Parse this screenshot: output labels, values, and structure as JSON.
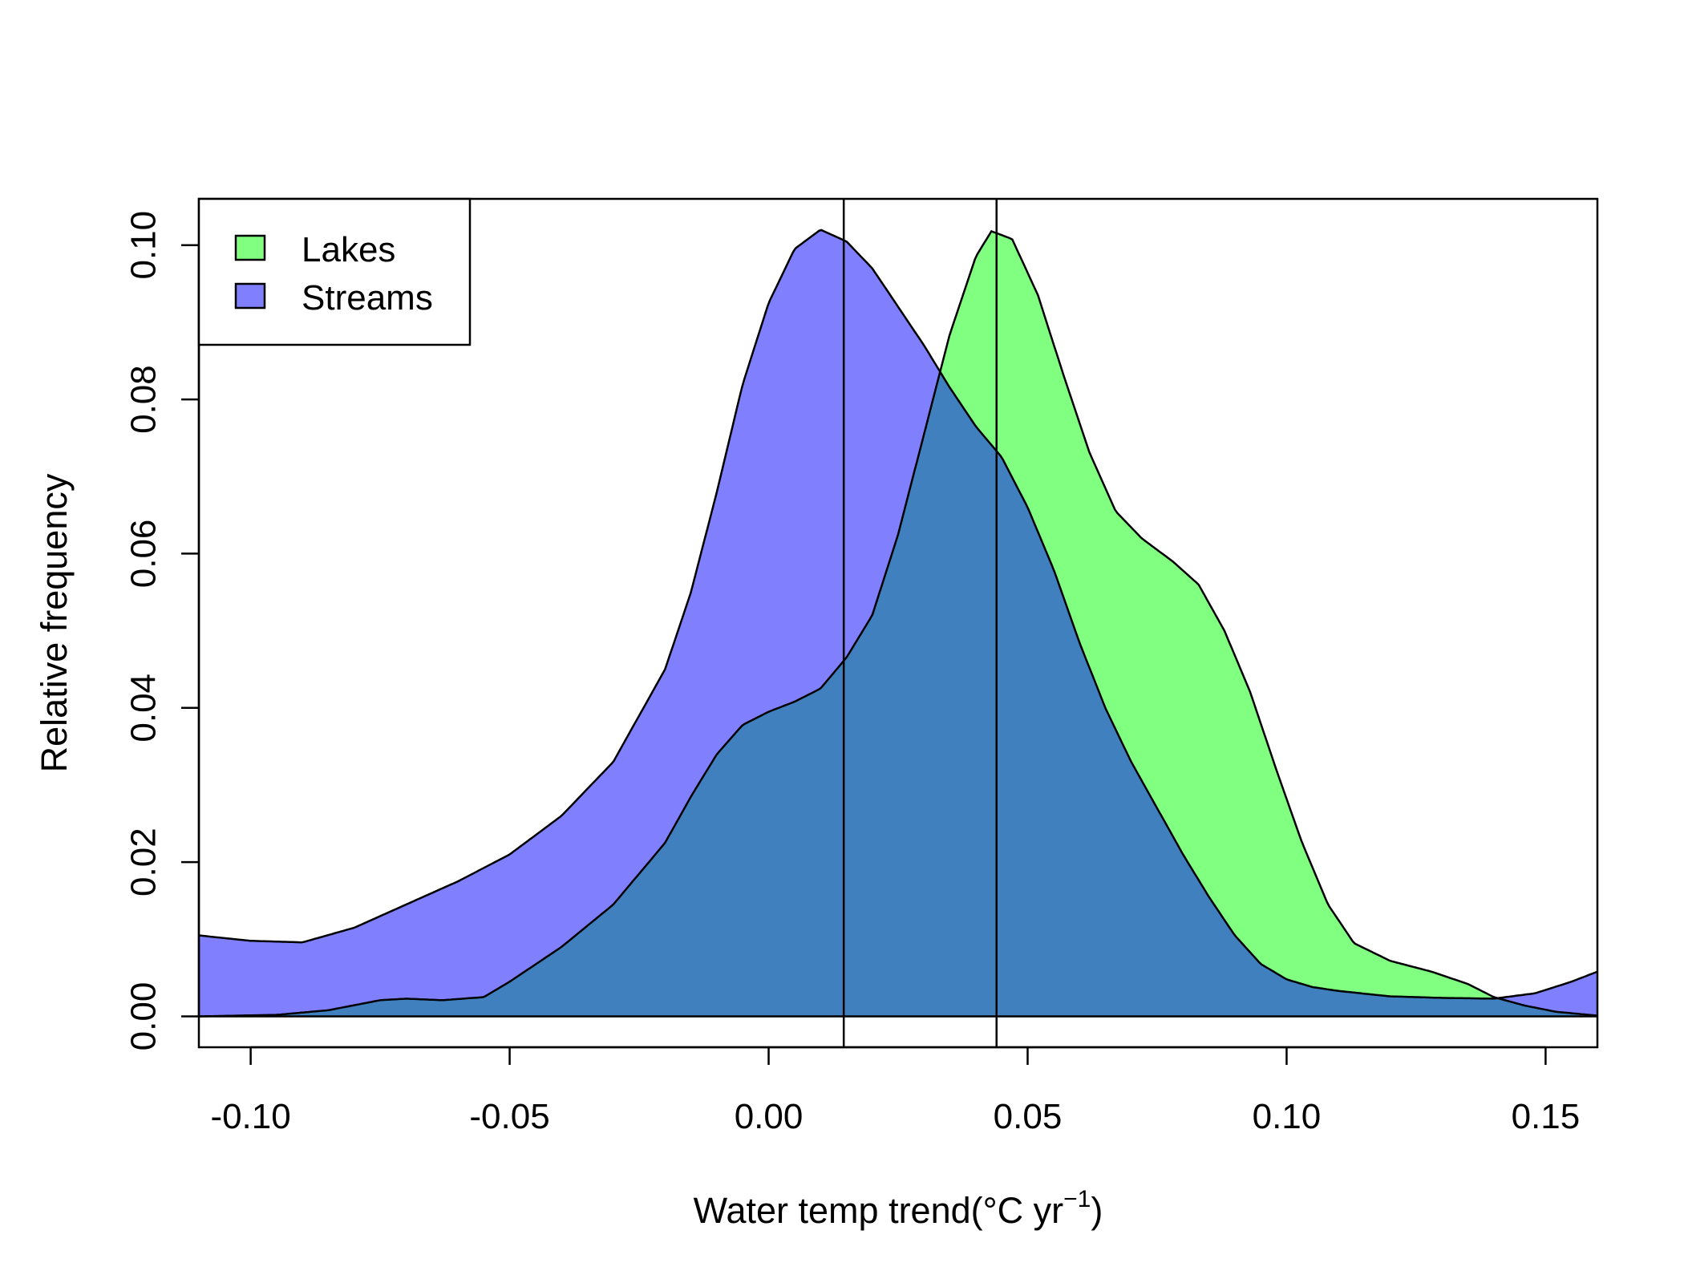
{
  "chart_data": {
    "type": "area",
    "xlabel": "Water temp trend(°C yr",
    "xlabel_superscript": "−1",
    "xlabel_suffix": ")",
    "ylabel": "Relative frequency",
    "xlim": [
      -0.11,
      0.16
    ],
    "ylim": [
      -0.004,
      0.106
    ],
    "x_ticks": [
      -0.1,
      -0.05,
      0.0,
      0.05,
      0.1,
      0.15
    ],
    "x_tick_labels": [
      "-0.10",
      "-0.05",
      "0.00",
      "0.05",
      "0.10",
      "0.15"
    ],
    "y_ticks": [
      0.0,
      0.02,
      0.04,
      0.06,
      0.08,
      0.1
    ],
    "y_tick_labels": [
      "0.00",
      "0.02",
      "0.04",
      "0.06",
      "0.08",
      "0.10"
    ],
    "legend": {
      "position": "top-left"
    },
    "vlines": [
      0.0145,
      0.044
    ],
    "overlap_color": "#4080BF",
    "series": [
      {
        "name": "Lakes",
        "color": "#80FF80",
        "points": [
          [
            -0.11,
            0.0
          ],
          [
            -0.095,
            0.0002
          ],
          [
            -0.085,
            0.0008
          ],
          [
            -0.075,
            0.0021
          ],
          [
            -0.07,
            0.0023
          ],
          [
            -0.063,
            0.0021
          ],
          [
            -0.055,
            0.0025
          ],
          [
            -0.05,
            0.0045
          ],
          [
            -0.04,
            0.009
          ],
          [
            -0.03,
            0.0145
          ],
          [
            -0.02,
            0.0225
          ],
          [
            -0.015,
            0.0285
          ],
          [
            -0.01,
            0.034
          ],
          [
            -0.005,
            0.0378
          ],
          [
            0.0,
            0.0395
          ],
          [
            0.005,
            0.0408
          ],
          [
            0.01,
            0.0425
          ],
          [
            0.015,
            0.0465
          ],
          [
            0.02,
            0.052
          ],
          [
            0.025,
            0.0625
          ],
          [
            0.03,
            0.0755
          ],
          [
            0.035,
            0.0885
          ],
          [
            0.04,
            0.0985
          ],
          [
            0.043,
            0.1018
          ],
          [
            0.047,
            0.1008
          ],
          [
            0.052,
            0.0935
          ],
          [
            0.057,
            0.083
          ],
          [
            0.062,
            0.073
          ],
          [
            0.067,
            0.0655
          ],
          [
            0.072,
            0.062
          ],
          [
            0.078,
            0.059
          ],
          [
            0.083,
            0.056
          ],
          [
            0.088,
            0.05
          ],
          [
            0.093,
            0.042
          ],
          [
            0.098,
            0.032
          ],
          [
            0.103,
            0.0225
          ],
          [
            0.108,
            0.0145
          ],
          [
            0.113,
            0.0095
          ],
          [
            0.12,
            0.0072
          ],
          [
            0.128,
            0.0058
          ],
          [
            0.135,
            0.0042
          ],
          [
            0.14,
            0.0025
          ],
          [
            0.146,
            0.0014
          ],
          [
            0.152,
            0.0006
          ],
          [
            0.16,
            0.0001
          ]
        ]
      },
      {
        "name": "Streams",
        "color": "#8080FF",
        "points": [
          [
            -0.11,
            0.0105
          ],
          [
            -0.1,
            0.0098
          ],
          [
            -0.09,
            0.0096
          ],
          [
            -0.08,
            0.0115
          ],
          [
            -0.07,
            0.0145
          ],
          [
            -0.06,
            0.0175
          ],
          [
            -0.05,
            0.021
          ],
          [
            -0.04,
            0.026
          ],
          [
            -0.03,
            0.033
          ],
          [
            -0.02,
            0.045
          ],
          [
            -0.015,
            0.055
          ],
          [
            -0.01,
            0.068
          ],
          [
            -0.005,
            0.082
          ],
          [
            0.0,
            0.0925
          ],
          [
            0.005,
            0.0995
          ],
          [
            0.01,
            0.102
          ],
          [
            0.015,
            0.1005
          ],
          [
            0.02,
            0.097
          ],
          [
            0.025,
            0.092
          ],
          [
            0.03,
            0.087
          ],
          [
            0.035,
            0.0815
          ],
          [
            0.04,
            0.0765
          ],
          [
            0.045,
            0.0725
          ],
          [
            0.05,
            0.066
          ],
          [
            0.055,
            0.058
          ],
          [
            0.06,
            0.0485
          ],
          [
            0.065,
            0.04
          ],
          [
            0.07,
            0.033
          ],
          [
            0.075,
            0.027
          ],
          [
            0.08,
            0.021
          ],
          [
            0.085,
            0.0155
          ],
          [
            0.09,
            0.0105
          ],
          [
            0.095,
            0.0068
          ],
          [
            0.1,
            0.0048
          ],
          [
            0.105,
            0.0038
          ],
          [
            0.11,
            0.0033
          ],
          [
            0.12,
            0.0026
          ],
          [
            0.13,
            0.0024
          ],
          [
            0.14,
            0.0023
          ],
          [
            0.148,
            0.003
          ],
          [
            0.155,
            0.0045
          ],
          [
            0.16,
            0.0058
          ]
        ]
      }
    ]
  }
}
